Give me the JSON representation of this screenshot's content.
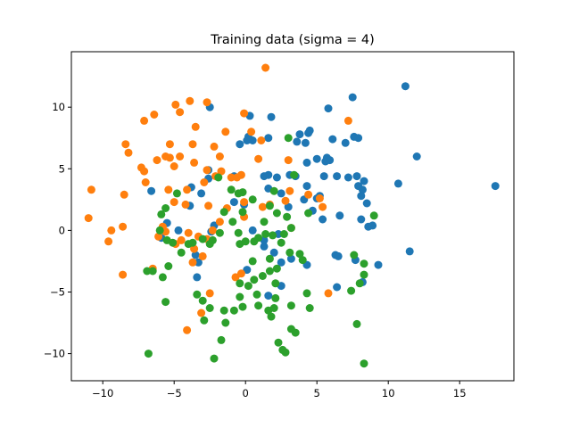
{
  "chart_data": {
    "type": "scatter",
    "title": "Training data (sigma = 4)",
    "xlabel": "",
    "ylabel": "",
    "xlim": [
      -12.2,
      18.8
    ],
    "ylim": [
      -12.2,
      14.5
    ],
    "xticks": [
      -10,
      -5,
      0,
      5,
      10,
      15
    ],
    "yticks": [
      -10,
      -5,
      0,
      5,
      10
    ],
    "grid": false,
    "legend": "none",
    "series": [
      {
        "color": "#1f77b4",
        "points": [
          [
            -2.5,
            10.0
          ],
          [
            0.3,
            9.3
          ],
          [
            1.8,
            9.2
          ],
          [
            3.8,
            7.8
          ],
          [
            4.4,
            7.9
          ],
          [
            4.5,
            8.1
          ],
          [
            3.6,
            7.2
          ],
          [
            4.2,
            7.1
          ],
          [
            5.8,
            9.9
          ],
          [
            7.5,
            10.8
          ],
          [
            11.2,
            11.7
          ],
          [
            12.0,
            6.0
          ],
          [
            17.5,
            3.6
          ],
          [
            11.5,
            -1.7
          ],
          [
            10.7,
            3.8
          ],
          [
            7.0,
            7.1
          ],
          [
            7.6,
            7.6
          ],
          [
            7.9,
            7.5
          ],
          [
            6.1,
            7.4
          ],
          [
            5.6,
            5.6
          ],
          [
            5.7,
            5.9
          ],
          [
            5.9,
            5.7
          ],
          [
            5.0,
            5.8
          ],
          [
            4.3,
            5.5
          ],
          [
            3.1,
            4.5
          ],
          [
            2.2,
            4.3
          ],
          [
            1.6,
            4.5
          ],
          [
            1.3,
            4.4
          ],
          [
            0.5,
            7.3
          ],
          [
            -0.4,
            7.0
          ],
          [
            0.1,
            7.3
          ],
          [
            0.2,
            7.6
          ],
          [
            1.6,
            7.5
          ],
          [
            -0.8,
            4.4
          ],
          [
            -2.6,
            4.9
          ],
          [
            -2.6,
            4.2
          ],
          [
            -3.8,
            3.5
          ],
          [
            -3.1,
            3.0
          ],
          [
            1.6,
            3.4
          ],
          [
            2.5,
            3.0
          ],
          [
            3.5,
            4.4
          ],
          [
            4.3,
            3.6
          ],
          [
            5.5,
            4.4
          ],
          [
            6.4,
            4.4
          ],
          [
            7.2,
            4.3
          ],
          [
            7.8,
            4.4
          ],
          [
            8.3,
            4.0
          ],
          [
            7.9,
            3.6
          ],
          [
            8.2,
            3.3
          ],
          [
            8.1,
            2.8
          ],
          [
            8.5,
            2.2
          ],
          [
            8.6,
            0.3
          ],
          [
            8.9,
            0.4
          ],
          [
            8.1,
            0.9
          ],
          [
            6.6,
            1.2
          ],
          [
            5.4,
            0.9
          ],
          [
            4.7,
            1.6
          ],
          [
            5.2,
            2.8
          ],
          [
            5.0,
            2.6
          ],
          [
            4.1,
            2.5
          ],
          [
            3.0,
            1.9
          ],
          [
            -0.1,
            2.1
          ],
          [
            -0.8,
            2.3
          ],
          [
            -2.2,
            0.4
          ],
          [
            -2.4,
            -0.1
          ],
          [
            -3.9,
            2.0
          ],
          [
            -4.7,
            0.0
          ],
          [
            -5.9,
            -0.6
          ],
          [
            -5.5,
            0.6
          ],
          [
            -6.6,
            3.2
          ],
          [
            0.5,
            0.0
          ],
          [
            1.3,
            -0.8
          ],
          [
            2.3,
            -0.3
          ],
          [
            2.0,
            -1.8
          ],
          [
            2.5,
            -2.6
          ],
          [
            3.2,
            -2.3
          ],
          [
            4.3,
            -2.8
          ],
          [
            6.3,
            -2.0
          ],
          [
            6.5,
            -2.1
          ],
          [
            6.4,
            -4.6
          ],
          [
            7.7,
            -2.4
          ],
          [
            9.3,
            -2.8
          ],
          [
            8.2,
            -4.2
          ],
          [
            2.5,
            -4.5
          ],
          [
            1.6,
            -5.3
          ],
          [
            -3.4,
            -3.8
          ],
          [
            -3.5,
            -2.0
          ],
          [
            -3.3,
            -2.6
          ],
          [
            1.3,
            -1.3
          ],
          [
            0.1,
            -3.2
          ]
        ]
      },
      {
        "color": "#ff7f0e",
        "points": [
          [
            1.4,
            13.2
          ],
          [
            -3.9,
            10.5
          ],
          [
            -2.7,
            10.4
          ],
          [
            -4.9,
            10.2
          ],
          [
            -4.6,
            9.6
          ],
          [
            -6.4,
            9.4
          ],
          [
            -7.1,
            8.9
          ],
          [
            -0.1,
            9.5
          ],
          [
            -5.3,
            7.0
          ],
          [
            -3.7,
            7.0
          ],
          [
            -2.2,
            6.8
          ],
          [
            -3.5,
            8.4
          ],
          [
            -1.4,
            8.0
          ],
          [
            0.4,
            8.0
          ],
          [
            1.1,
            7.3
          ],
          [
            -8.4,
            7.0
          ],
          [
            -8.2,
            6.3
          ],
          [
            -5.6,
            6.0
          ],
          [
            -4.6,
            6.0
          ],
          [
            -5.3,
            5.9
          ],
          [
            -6.2,
            5.7
          ],
          [
            -7.3,
            5.1
          ],
          [
            -7.1,
            4.8
          ],
          [
            -7.0,
            3.9
          ],
          [
            -5.0,
            5.2
          ],
          [
            -3.6,
            5.5
          ],
          [
            -1.8,
            6.0
          ],
          [
            0.9,
            5.8
          ],
          [
            3.0,
            5.7
          ],
          [
            -2.7,
            4.9
          ],
          [
            -1.7,
            4.8
          ],
          [
            -2.9,
            3.9
          ],
          [
            -2.1,
            4.4
          ],
          [
            -1.0,
            4.3
          ],
          [
            -0.6,
            4.3
          ],
          [
            -0.3,
            4.5
          ],
          [
            -5.4,
            3.3
          ],
          [
            -4.1,
            3.3
          ],
          [
            -10.8,
            3.3
          ],
          [
            -8.5,
            2.9
          ],
          [
            -5.0,
            2.3
          ],
          [
            -4.2,
            2.1
          ],
          [
            -2.6,
            2.0
          ],
          [
            -1.3,
            1.8
          ],
          [
            -0.1,
            2.3
          ],
          [
            -0.1,
            1.1
          ],
          [
            -11.0,
            1.0
          ],
          [
            -9.4,
            0.0
          ],
          [
            -9.6,
            -0.9
          ],
          [
            -8.6,
            0.3
          ],
          [
            -5.8,
            0.3
          ],
          [
            -5.6,
            -0.1
          ],
          [
            -6.1,
            -0.5
          ],
          [
            -4.5,
            -0.8
          ],
          [
            -2.3,
            0.0
          ],
          [
            -3.3,
            -0.5
          ],
          [
            -2.7,
            -0.7
          ],
          [
            -4.0,
            -0.2
          ],
          [
            -4.9,
            -1.1
          ],
          [
            -3.6,
            -1.5
          ],
          [
            -3.0,
            -2.1
          ],
          [
            -3.7,
            -2.6
          ],
          [
            -6.5,
            -3.1
          ],
          [
            -8.6,
            -3.6
          ],
          [
            -2.5,
            -5.1
          ],
          [
            -3.1,
            -6.7
          ],
          [
            -4.1,
            -8.1
          ],
          [
            -0.7,
            -3.8
          ],
          [
            -0.3,
            -3.5
          ],
          [
            2.8,
            2.4
          ],
          [
            3.1,
            3.2
          ],
          [
            4.4,
            2.9
          ],
          [
            5.2,
            2.6
          ],
          [
            5.4,
            1.9
          ],
          [
            3.2,
            0.2
          ],
          [
            1.7,
            2.1
          ],
          [
            1.2,
            1.9
          ],
          [
            -1.8,
            0.7
          ],
          [
            5.8,
            -5.1
          ],
          [
            7.2,
            8.9
          ]
        ]
      },
      {
        "color": "#2ca02c",
        "points": [
          [
            3.0,
            7.5
          ],
          [
            3.4,
            4.5
          ],
          [
            2.0,
            3.2
          ],
          [
            -1.9,
            4.3
          ],
          [
            -1.0,
            3.3
          ],
          [
            -0.5,
            3.0
          ],
          [
            -0.2,
            3.1
          ],
          [
            0.5,
            2.5
          ],
          [
            1.7,
            2.0
          ],
          [
            2.2,
            1.4
          ],
          [
            4.4,
            1.4
          ],
          [
            2.9,
            1.1
          ],
          [
            -0.9,
            0.7
          ],
          [
            -0.2,
            1.5
          ],
          [
            1.3,
            0.7
          ],
          [
            3.2,
            0.2
          ],
          [
            -4.8,
            3.0
          ],
          [
            -5.6,
            1.8
          ],
          [
            -5.9,
            1.3
          ],
          [
            -6.0,
            0.0
          ],
          [
            -5.5,
            -0.8
          ],
          [
            -5.1,
            -1.0
          ],
          [
            -4.5,
            -1.8
          ],
          [
            -4.0,
            -1.1
          ],
          [
            -3.7,
            -1.0
          ],
          [
            -3.0,
            -0.7
          ],
          [
            -2.5,
            -1.1
          ],
          [
            -1.8,
            -0.2
          ],
          [
            -1.5,
            1.5
          ],
          [
            -0.5,
            -0.2
          ],
          [
            -0.4,
            -1.1
          ],
          [
            0.0,
            -0.9
          ],
          [
            0.9,
            -0.6
          ],
          [
            1.4,
            -0.3
          ],
          [
            1.9,
            -0.4
          ],
          [
            2.5,
            -1.0
          ],
          [
            3.1,
            -1.8
          ],
          [
            1.7,
            -2.3
          ],
          [
            1.7,
            -3.3
          ],
          [
            2.2,
            -3.1
          ],
          [
            3.8,
            -1.9
          ],
          [
            4.0,
            -2.4
          ],
          [
            0.5,
            -2.5
          ],
          [
            1.2,
            -3.7
          ],
          [
            0.6,
            -4.0
          ],
          [
            0.2,
            -4.5
          ],
          [
            -0.4,
            -4.3
          ],
          [
            0.8,
            -5.2
          ],
          [
            2.1,
            -4.3
          ],
          [
            2.1,
            -5.5
          ],
          [
            0.9,
            -6.1
          ],
          [
            1.6,
            -6.5
          ],
          [
            1.8,
            -7.0
          ],
          [
            2.0,
            -6.3
          ],
          [
            3.2,
            -6.1
          ],
          [
            4.3,
            -5.1
          ],
          [
            4.5,
            -6.3
          ],
          [
            -5.4,
            -2.9
          ],
          [
            -5.8,
            -3.8
          ],
          [
            -6.5,
            -3.3
          ],
          [
            -3.4,
            -5.2
          ],
          [
            -3.0,
            -5.7
          ],
          [
            -2.5,
            -6.3
          ],
          [
            -1.5,
            -6.5
          ],
          [
            -0.8,
            -6.5
          ],
          [
            -0.4,
            -5.4
          ],
          [
            -0.2,
            -6.2
          ],
          [
            -1.4,
            -7.5
          ],
          [
            -2.9,
            -7.3
          ],
          [
            -1.7,
            -8.9
          ],
          [
            -2.2,
            -10.4
          ],
          [
            -6.8,
            -10.0
          ],
          [
            2.3,
            -9.1
          ],
          [
            2.6,
            -9.7
          ],
          [
            2.8,
            -9.9
          ],
          [
            3.5,
            -8.3
          ],
          [
            3.2,
            -8.0
          ],
          [
            7.8,
            -7.6
          ],
          [
            8.3,
            -10.8
          ],
          [
            7.4,
            -4.9
          ],
          [
            8.0,
            -4.3
          ],
          [
            8.3,
            -3.6
          ],
          [
            8.3,
            -2.7
          ],
          [
            7.6,
            -2.0
          ],
          [
            9.0,
            1.2
          ],
          [
            -5.6,
            -5.8
          ],
          [
            -6.9,
            -3.3
          ],
          [
            -2.3,
            -0.8
          ],
          [
            2.7,
            -0.3
          ],
          [
            0.6,
            -0.9
          ]
        ]
      }
    ]
  }
}
